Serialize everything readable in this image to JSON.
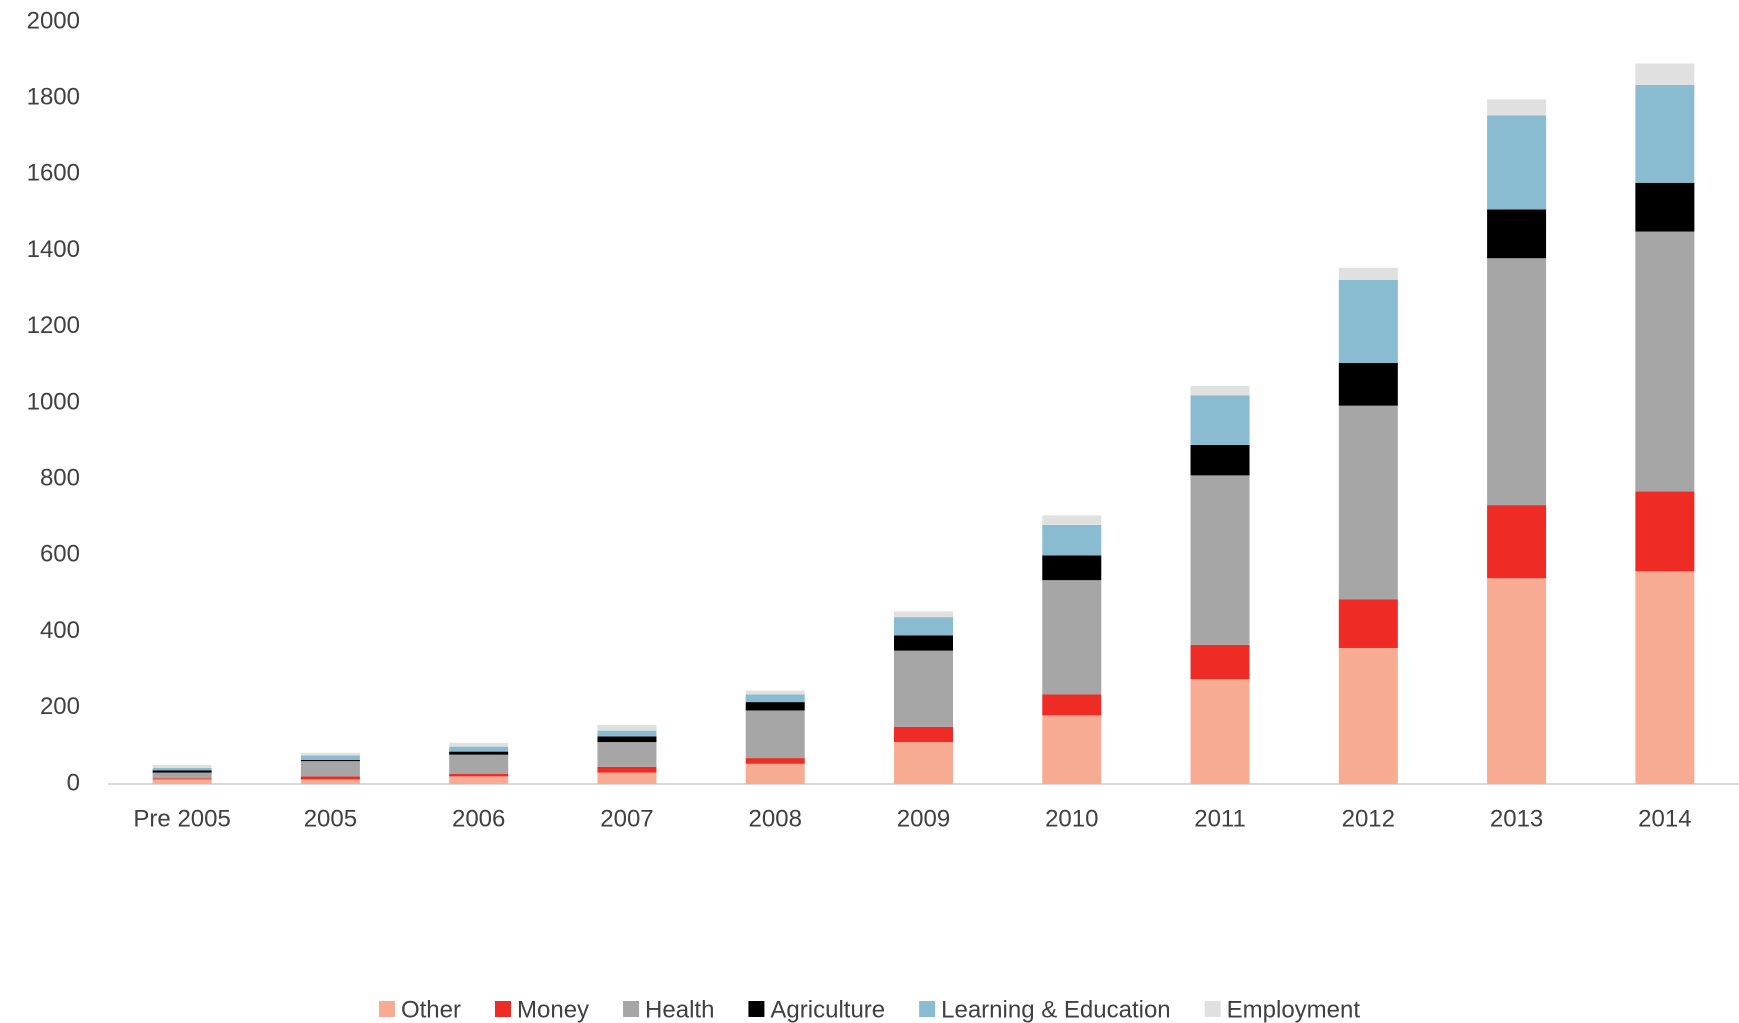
{
  "chart_data": {
    "type": "stacked_bar",
    "categories": [
      "Pre 2005",
      "2005",
      "2006",
      "2007",
      "2008",
      "2009",
      "2010",
      "2011",
      "2012",
      "2013",
      "2014"
    ],
    "series": [
      {
        "name": "Other",
        "color": "#f6ab92",
        "values": [
          12,
          12,
          20,
          30,
          53,
          110,
          180,
          275,
          357,
          540,
          558
        ]
      },
      {
        "name": "Money",
        "color": "#ee2b25",
        "values": [
          3,
          8,
          7,
          15,
          15,
          40,
          55,
          90,
          128,
          192,
          210
        ]
      },
      {
        "name": "Health",
        "color": "#a6a6a6",
        "values": [
          15,
          40,
          50,
          65,
          125,
          200,
          300,
          445,
          508,
          648,
          682
        ]
      },
      {
        "name": "Agriculture",
        "color": "#000000",
        "values": [
          6,
          3,
          8,
          15,
          22,
          40,
          65,
          80,
          112,
          128,
          128
        ]
      },
      {
        "name": "Learning & Education",
        "color": "#89bcd1",
        "values": [
          6,
          12,
          13,
          15,
          20,
          48,
          80,
          130,
          218,
          247,
          257
        ]
      },
      {
        "name": "Employment",
        "color": "#e0e0e0",
        "values": [
          8,
          7,
          10,
          15,
          10,
          15,
          25,
          25,
          32,
          42,
          56
        ]
      }
    ],
    "ylim": [
      0,
      2000
    ],
    "yticks": [
      0,
      200,
      400,
      600,
      800,
      1000,
      1200,
      1400,
      1600,
      1800,
      2000
    ],
    "grid": false,
    "legend": "bottom"
  }
}
